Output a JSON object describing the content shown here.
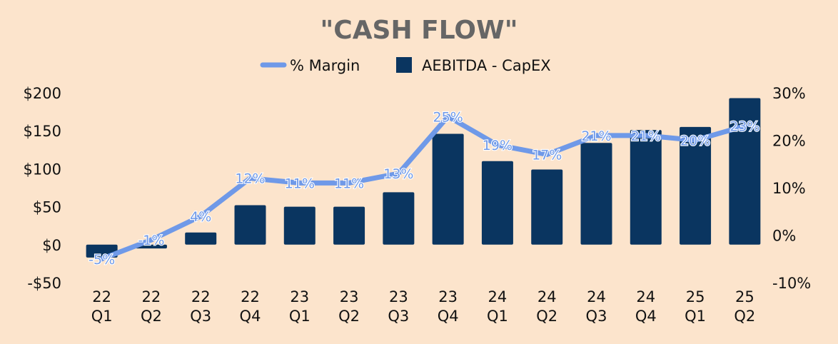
{
  "chart_data": {
    "type": "bar",
    "title": "\"CASH FLOW\"",
    "categories": [
      [
        "22",
        "Q1"
      ],
      [
        "22",
        "Q2"
      ],
      [
        "22",
        "Q3"
      ],
      [
        "22",
        "Q4"
      ],
      [
        "23",
        "Q1"
      ],
      [
        "23",
        "Q2"
      ],
      [
        "23",
        "Q3"
      ],
      [
        "23",
        "Q4"
      ],
      [
        "24",
        "Q1"
      ],
      [
        "24",
        "Q2"
      ],
      [
        "24",
        "Q3"
      ],
      [
        "24",
        "Q4"
      ],
      [
        "25",
        "Q1"
      ],
      [
        "25",
        "Q2"
      ]
    ],
    "series": [
      {
        "name": "AEBITDA - CapEX",
        "type": "bar",
        "axis": "left",
        "color": "#0A3560",
        "values": [
          -17,
          -5,
          16,
          52,
          50,
          50,
          69,
          146,
          110,
          99,
          134,
          151,
          155,
          193
        ]
      },
      {
        "name": "% Margin",
        "type": "line",
        "axis": "right",
        "color": "#6F99E8",
        "values": [
          -5,
          -1,
          4,
          12,
          11,
          11,
          13,
          25,
          19,
          17,
          21,
          21,
          20,
          23
        ],
        "labels": [
          "-5%",
          "-1%",
          "4%",
          "12%",
          "11%",
          "11%",
          "13%",
          "25%",
          "19%",
          "17%",
          "21%",
          "21%",
          "20%",
          "23%"
        ]
      }
    ],
    "y_left": {
      "range": [
        -50,
        200
      ],
      "ticks": [
        -50,
        0,
        50,
        100,
        150,
        200
      ],
      "tick_labels": [
        "-$50",
        "$0",
        "$50",
        "$100",
        "$150",
        "$200"
      ]
    },
    "y_right": {
      "range": [
        -10,
        30
      ],
      "ticks": [
        -10,
        0,
        10,
        20,
        30
      ],
      "tick_labels": [
        "-10%",
        "0%",
        "10%",
        "20%",
        "30%"
      ]
    },
    "legend": {
      "placement": "top-center",
      "items": [
        {
          "label": "% Margin",
          "marker": "line",
          "color": "#6F99E8"
        },
        {
          "label": "AEBITDA - CapEX",
          "marker": "square",
          "color": "#0A3560"
        }
      ]
    },
    "grid": false
  }
}
